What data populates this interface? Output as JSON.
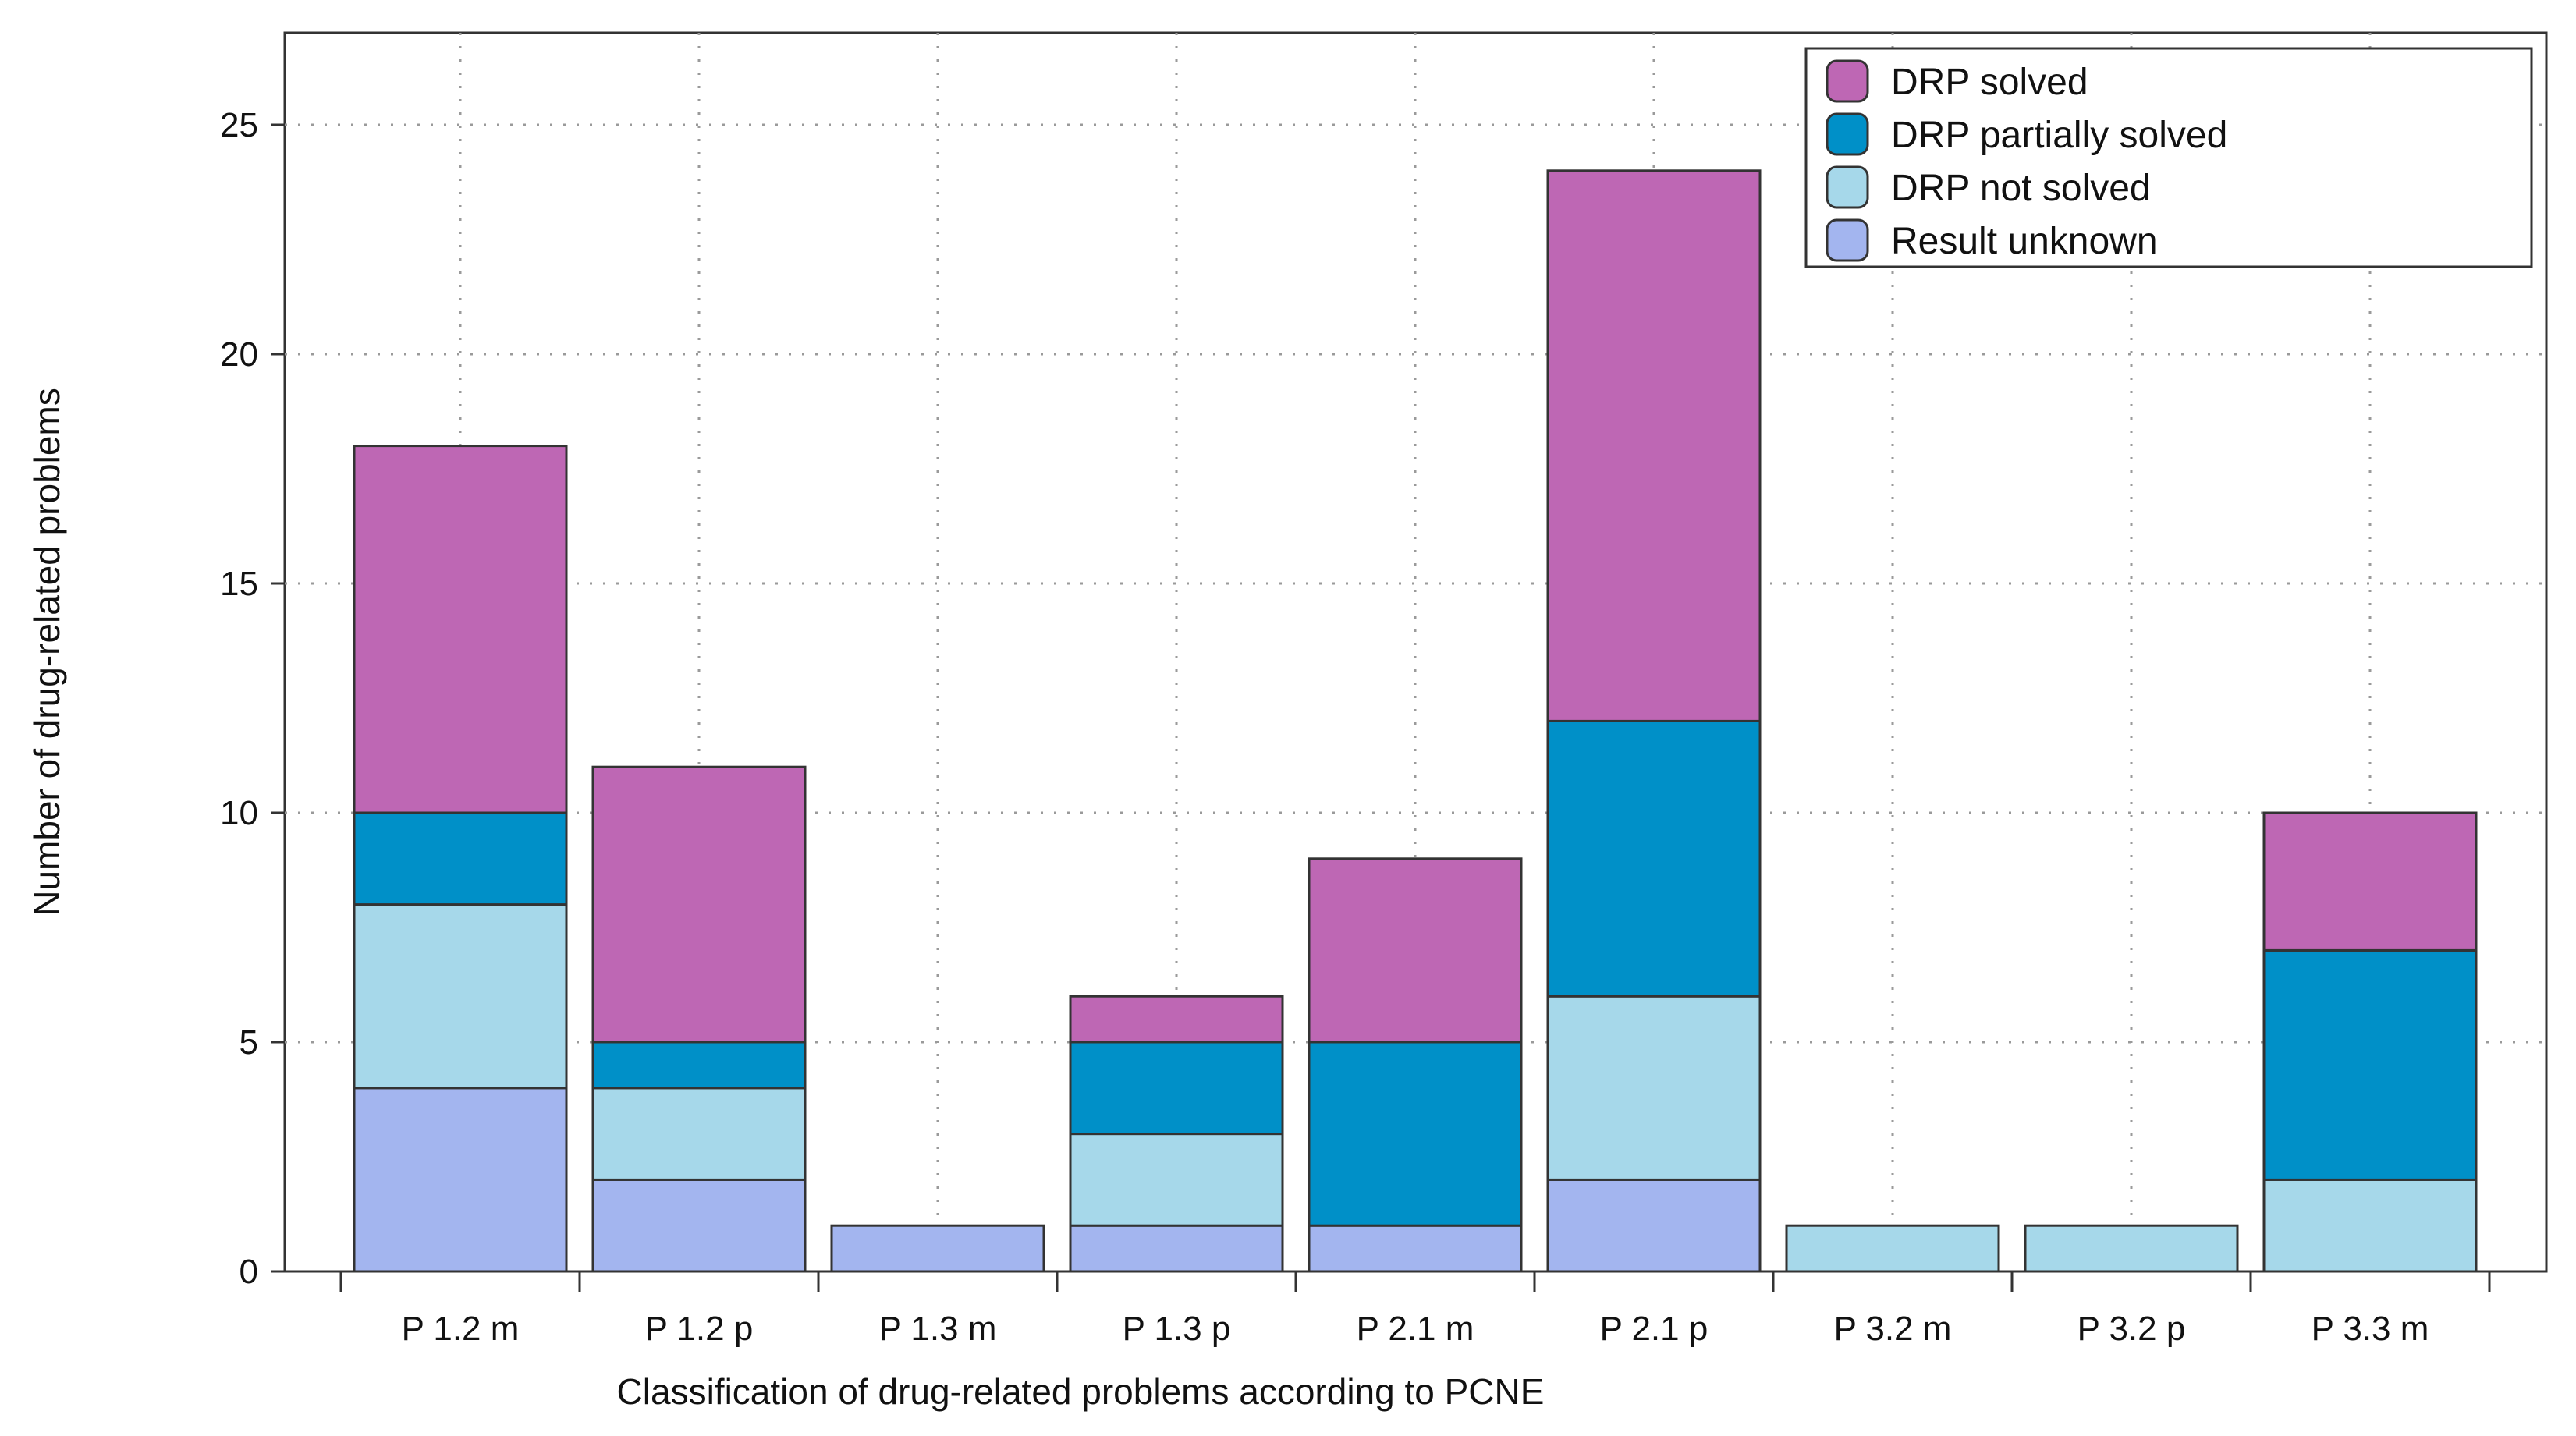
{
  "chart_data": {
    "type": "bar",
    "stacked": true,
    "title": "",
    "xlabel": "Classification of drug-related problems according to PCNE",
    "ylabel": "Number of drug-related problems",
    "ylim": [
      0,
      27
    ],
    "yticks": [
      0,
      5,
      10,
      15,
      20,
      25
    ],
    "grid": true,
    "legend_position": "top-right",
    "categories": [
      "P 1.2 m",
      "P 1.2 p",
      "P 1.3 m",
      "P 1.3 p",
      "P 2.1 m",
      "P 2.1 p",
      "P 3.2 m",
      "P 3.2 p",
      "P 3.3 m"
    ],
    "series": [
      {
        "name": "Result unknown",
        "color": "#a3b5ef",
        "values": [
          4,
          2,
          1,
          1,
          1,
          2,
          0,
          0,
          0
        ]
      },
      {
        "name": "DRP not solved",
        "color": "#a6d8ea",
        "values": [
          4,
          2,
          0,
          2,
          0,
          4,
          1,
          1,
          2
        ]
      },
      {
        "name": "DRP partially solved",
        "color": "#0090c8",
        "values": [
          2,
          1,
          0,
          2,
          4,
          6,
          0,
          0,
          5
        ]
      },
      {
        "name": "DRP solved",
        "color": "#be67b4",
        "values": [
          8,
          6,
          0,
          1,
          4,
          12,
          0,
          0,
          3
        ]
      }
    ],
    "legend_order": [
      "DRP solved",
      "DRP partially solved",
      "DRP not solved",
      "Result unknown"
    ]
  }
}
